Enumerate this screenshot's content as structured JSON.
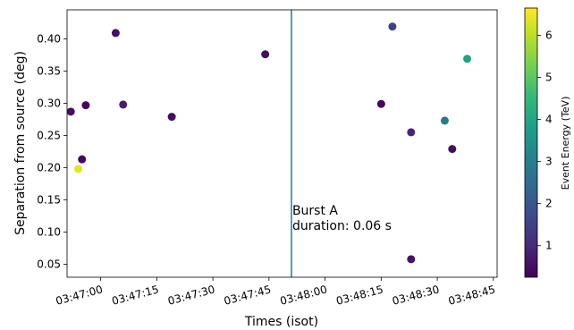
{
  "chart_data": {
    "type": "scatter",
    "xlabel": "Times (isot)",
    "ylabel": "Separation from source (deg)",
    "xlim": [
      "03:46:51",
      "03:48:46"
    ],
    "ylim": [
      0.03,
      0.445
    ],
    "xticks": [
      "03:47:00",
      "03:47:15",
      "03:47:30",
      "03:47:45",
      "03:48:00",
      "03:48:15",
      "03:48:30",
      "03:48:45"
    ],
    "yticks": [
      "0.05",
      "0.10",
      "0.15",
      "0.20",
      "0.25",
      "0.30",
      "0.35",
      "0.40"
    ],
    "grid": false,
    "points": [
      {
        "time": "03:46:52",
        "separation": 0.287,
        "energy": 0.5
      },
      {
        "time": "03:46:54",
        "separation": 0.198,
        "energy": 6.4
      },
      {
        "time": "03:46:55",
        "separation": 0.213,
        "energy": 0.4
      },
      {
        "time": "03:46:56",
        "separation": 0.297,
        "energy": 0.4
      },
      {
        "time": "03:47:04",
        "separation": 0.409,
        "energy": 0.5
      },
      {
        "time": "03:47:06",
        "separation": 0.298,
        "energy": 0.8
      },
      {
        "time": "03:47:19",
        "separation": 0.279,
        "energy": 0.5
      },
      {
        "time": "03:47:44",
        "separation": 0.376,
        "energy": 0.5
      },
      {
        "time": "03:48:15",
        "separation": 0.299,
        "energy": 0.4
      },
      {
        "time": "03:48:18",
        "separation": 0.419,
        "energy": 1.5
      },
      {
        "time": "03:48:23",
        "separation": 0.255,
        "energy": 0.9
      },
      {
        "time": "03:48:23",
        "separation": 0.058,
        "energy": 0.6
      },
      {
        "time": "03:48:32",
        "separation": 0.273,
        "energy": 2.8
      },
      {
        "time": "03:48:34",
        "separation": 0.229,
        "energy": 0.5
      },
      {
        "time": "03:48:38",
        "separation": 0.369,
        "energy": 3.9
      }
    ],
    "vline": {
      "time": "03:47:51",
      "color": "#1f77b4"
    },
    "annotation": {
      "line1": "Burst A",
      "line2": "duration: 0.06 s",
      "time": "03:47:51",
      "separation": 0.127
    },
    "colorbar": {
      "label": "Event Energy (TeV)",
      "min": 0.25,
      "max": 6.65,
      "ticks": [
        "1",
        "2",
        "3",
        "4",
        "5",
        "6"
      ],
      "colormap": "viridis",
      "stops": [
        "#440154",
        "#482878",
        "#3e4989",
        "#31688e",
        "#26828e",
        "#1f9e89",
        "#35b779",
        "#6ece58",
        "#b5de2b",
        "#fde725"
      ]
    }
  }
}
